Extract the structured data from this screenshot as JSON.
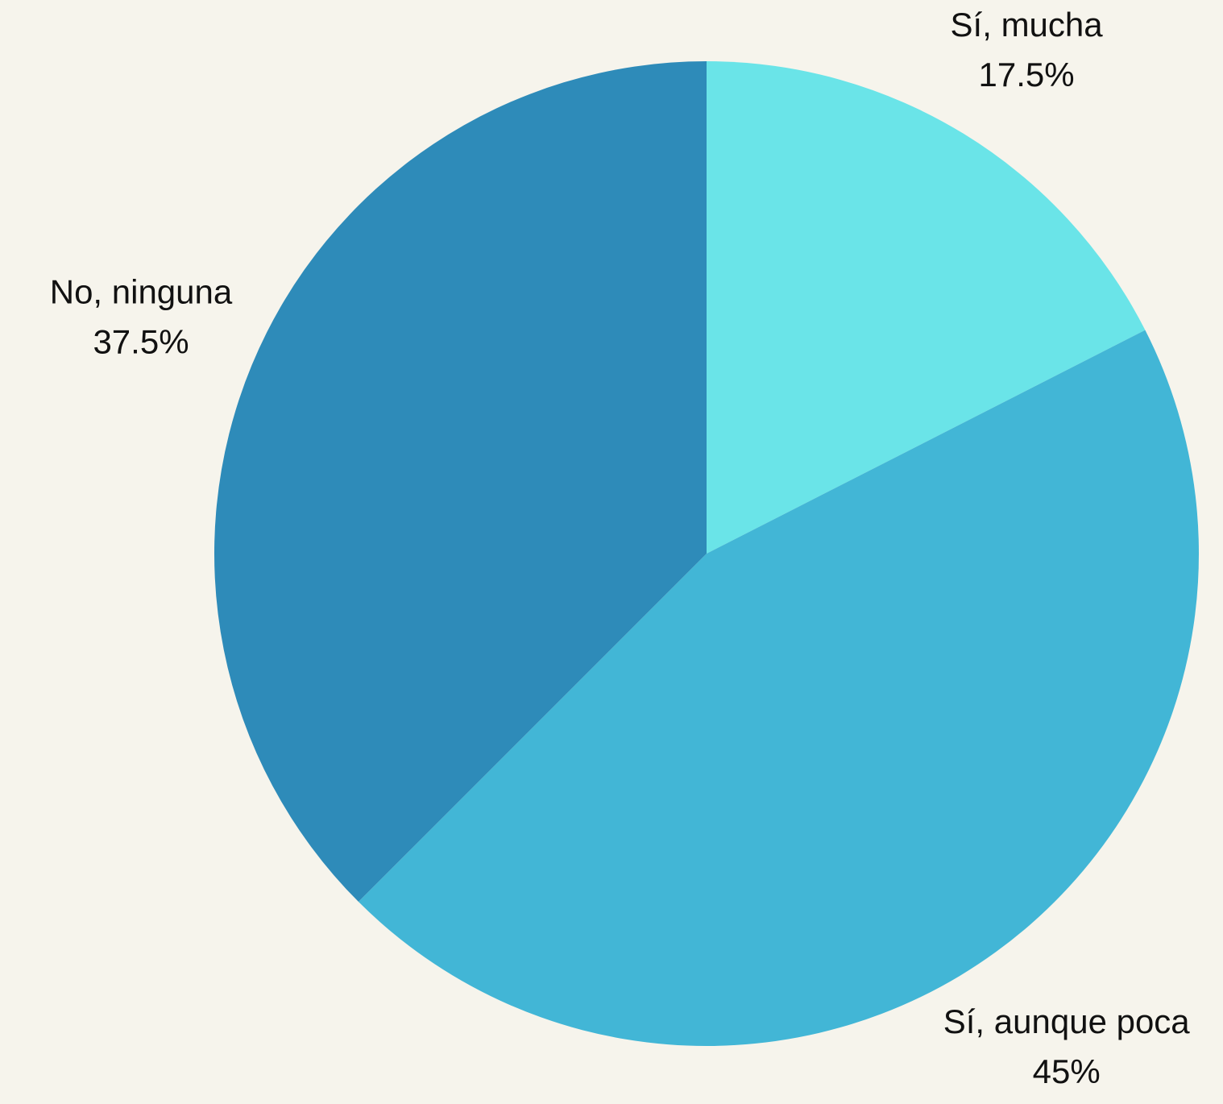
{
  "chart_data": {
    "type": "pie",
    "categories": [
      "Sí, mucha",
      "Sí, aunque poca",
      "No, ninguna"
    ],
    "values": [
      17.5,
      45,
      37.5
    ],
    "value_labels": [
      "17.5%",
      "45%",
      "37.5%"
    ],
    "colors": [
      "#6ae4e8",
      "#42b6d6",
      "#2e8bb9"
    ]
  }
}
